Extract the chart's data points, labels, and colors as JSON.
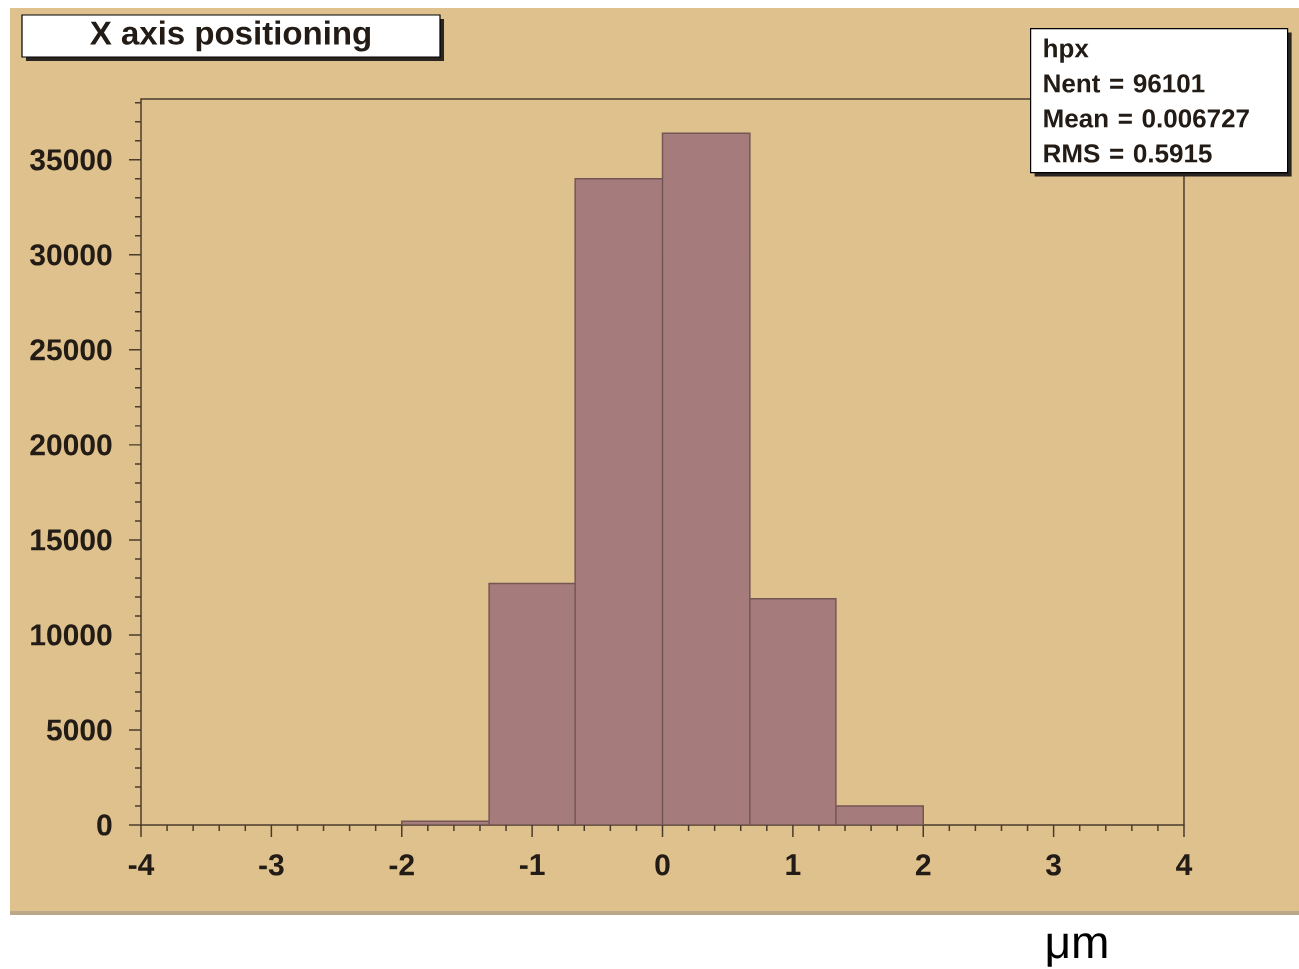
{
  "chart_data": {
    "type": "histogram",
    "title": "X axis positioning",
    "xlabel": "μm",
    "bins": [
      -2,
      -1.33,
      -0.67,
      0,
      0.67,
      1.33,
      2
    ],
    "values": [
      200,
      12700,
      34000,
      36400,
      11900,
      1000
    ],
    "color": "#a67b7b",
    "xlim": [
      -4,
      4
    ],
    "ylim": [
      0,
      38200
    ],
    "xticks": [
      -4,
      -3,
      -2,
      -1,
      0,
      1,
      2,
      3,
      4
    ],
    "yticks": [
      0,
      5000,
      10000,
      15000,
      20000,
      25000,
      30000,
      35000
    ],
    "annotations": [
      "hpx",
      "Nent = 96101",
      "Mean = 0.006727",
      "RMS = 0.5915"
    ]
  }
}
